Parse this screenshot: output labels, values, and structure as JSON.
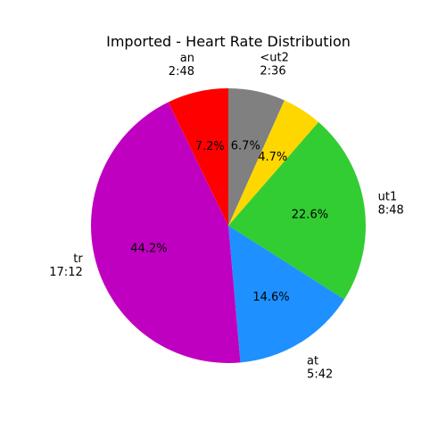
{
  "chart_data": {
    "type": "pie",
    "title": "Imported - Heart Rate Distribution",
    "start_angle_deg": 90,
    "direction": "clockwise",
    "slices": [
      {
        "name": "<ut2",
        "time": "2:36",
        "percent": 6.7,
        "percent_label": "6.7%",
        "color": "#808080"
      },
      {
        "name": "",
        "time": "",
        "percent": 4.7,
        "percent_label": "4.7%",
        "color": "#FFD700"
      },
      {
        "name": "ut1",
        "time": "8:48",
        "percent": 22.6,
        "percent_label": "22.6%",
        "color": "#32CD32"
      },
      {
        "name": "at",
        "time": "5:42",
        "percent": 14.6,
        "percent_label": "14.6%",
        "color": "#1E90FF"
      },
      {
        "name": "tr",
        "time": "17:12",
        "percent": 44.2,
        "percent_label": "44.2%",
        "color": "#C000C0"
      },
      {
        "name": "an",
        "time": "2:48",
        "percent": 7.2,
        "percent_label": "7.2%",
        "color": "#FF0000"
      }
    ]
  }
}
